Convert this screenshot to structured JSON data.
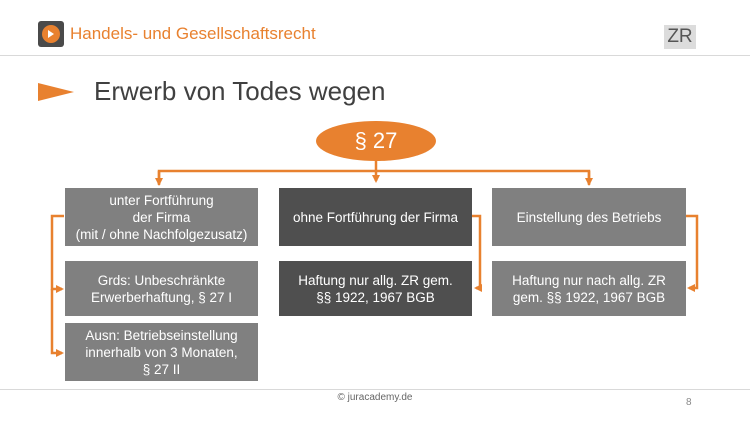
{
  "header": {
    "title": "Handels- und Gesellschaftsrecht",
    "badge": "ZR",
    "logo_icon": "play-icon",
    "accent_color": "#E8812F"
  },
  "slide": {
    "title": "Erwerb von Todes wegen"
  },
  "diagram": {
    "root": "§ 27",
    "left": {
      "top": [
        "unter Fortführung",
        "der Firma",
        "(mit / ohne Nachfolgezusatz)"
      ],
      "rule": [
        "Grds: Unbeschränkte",
        "Erwerberhaftung, § 27 I"
      ],
      "exception": [
        "Ausn: Betriebseinstellung",
        "innerhalb von 3 Monaten,",
        "§ 27 II"
      ]
    },
    "middle": {
      "top": "ohne Fortführung der Firma",
      "bottom": [
        "Haftung nur allg. ZR gem.",
        "§§ 1922, 1967 BGB"
      ]
    },
    "right": {
      "top": "Einstellung des Betriebs",
      "bottom": [
        "Haftung nur nach allg. ZR",
        "gem. §§ 1922, 1967 BGB"
      ]
    }
  },
  "footer": {
    "copyright": "© juracademy.de",
    "page": "8"
  }
}
